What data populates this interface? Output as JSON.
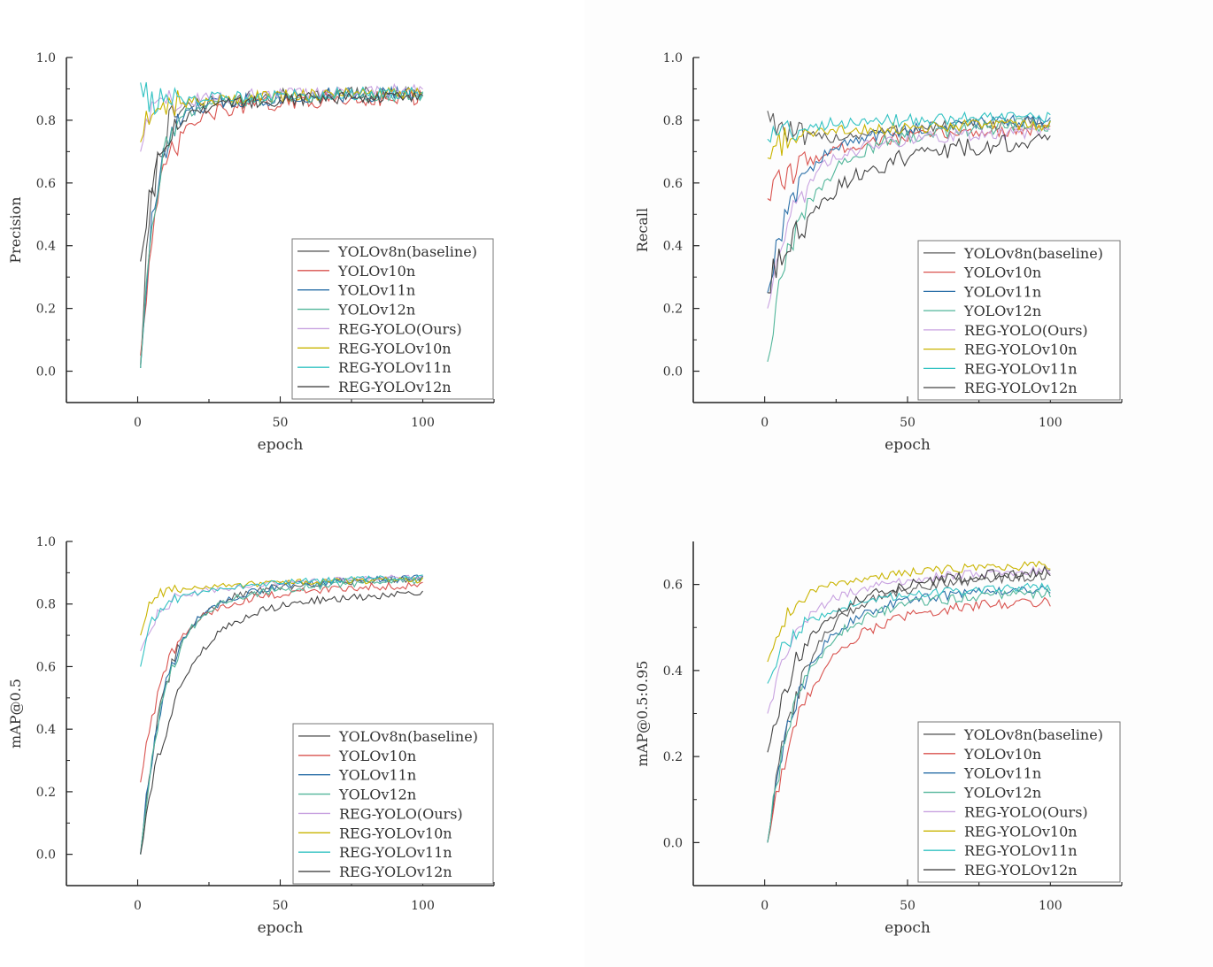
{
  "colors": {
    "series": [
      "#5c5c5c",
      "#d9534f",
      "#2a6fa8",
      "#52b69a",
      "#c8a2e0",
      "#c9b400",
      "#32c2c2",
      "#444444"
    ],
    "axis": "#222222",
    "text": "#333333",
    "legend_border": "#777777"
  },
  "legend_labels": [
    "YOLOv8n(baseline)",
    "YOLOv10n",
    "YOLOv11n",
    "YOLOv12n",
    "REG-YOLO(Ours)",
    "REG-YOLOv10n",
    "REG-YOLOv11n",
    "REG-YOLOv12n"
  ],
  "chart_data": [
    {
      "id": "precision",
      "type": "line",
      "title": "",
      "xlabel": "epoch",
      "ylabel": "Precision",
      "xlim": [
        -25,
        125
      ],
      "ylim": [
        -0.1,
        1.0
      ],
      "xticks": [
        0,
        50,
        100
      ],
      "yticks": [
        0.0,
        0.2,
        0.4,
        0.6,
        0.8,
        1.0
      ],
      "ytick_labels": [
        "0.0",
        "0.2",
        "0.4",
        "0.6",
        "0.8",
        "1.0"
      ],
      "legend_position": "lower-right",
      "epochs": [
        1,
        100
      ],
      "series": [
        {
          "name": "YOLOv8n(baseline)",
          "start": 0.02,
          "knee": 0.83,
          "final": 0.89,
          "tau": 4,
          "noise": 0.025
        },
        {
          "name": "YOLOv10n",
          "start": 0.05,
          "knee": 0.78,
          "final": 0.88,
          "tau": 6,
          "noise": 0.025
        },
        {
          "name": "YOLOv11n",
          "start": 0.01,
          "knee": 0.82,
          "final": 0.89,
          "tau": 5,
          "noise": 0.025
        },
        {
          "name": "YOLOv12n",
          "start": 0.01,
          "knee": 0.84,
          "final": 0.88,
          "tau": 5,
          "noise": 0.02
        },
        {
          "name": "REG-YOLO(Ours)",
          "start": 0.7,
          "knee": 0.84,
          "final": 0.9,
          "tau": 2,
          "noise": 0.02
        },
        {
          "name": "REG-YOLOv10n",
          "start": 0.73,
          "knee": 0.84,
          "final": 0.89,
          "tau": 2,
          "noise": 0.02
        },
        {
          "name": "REG-YOLOv11n",
          "start": 0.92,
          "knee": 0.85,
          "final": 0.89,
          "tau": 2,
          "noise": 0.02
        },
        {
          "name": "REG-YOLOv12n",
          "start": 0.35,
          "knee": 0.82,
          "final": 0.88,
          "tau": 6,
          "noise": 0.02
        }
      ]
    },
    {
      "id": "recall",
      "type": "line",
      "title": "",
      "xlabel": "epoch",
      "ylabel": "Recall",
      "xlim": [
        -25,
        125
      ],
      "ylim": [
        -0.1,
        1.0
      ],
      "xticks": [
        0,
        50,
        100
      ],
      "yticks": [
        0.0,
        0.2,
        0.4,
        0.6,
        0.8,
        1.0
      ],
      "ytick_labels": [
        "0.0",
        "0.2",
        "0.4",
        "0.6",
        "0.8",
        "1.0"
      ],
      "legend_position": "lower-right",
      "epochs": [
        1,
        100
      ],
      "series": [
        {
          "name": "YOLOv8n(baseline)",
          "start": 0.83,
          "knee": 0.68,
          "final": 0.8,
          "tau": 8,
          "noise": 0.02
        },
        {
          "name": "YOLOv10n",
          "start": 0.55,
          "knee": 0.65,
          "final": 0.78,
          "tau": 10,
          "noise": 0.02
        },
        {
          "name": "YOLOv11n",
          "start": 0.25,
          "knee": 0.65,
          "final": 0.81,
          "tau": 8,
          "noise": 0.02
        },
        {
          "name": "YOLOv12n",
          "start": 0.03,
          "knee": 0.6,
          "final": 0.8,
          "tau": 10,
          "noise": 0.025
        },
        {
          "name": "REG-YOLO(Ours)",
          "start": 0.2,
          "knee": 0.65,
          "final": 0.77,
          "tau": 9,
          "noise": 0.02
        },
        {
          "name": "REG-YOLOv10n",
          "start": 0.68,
          "knee": 0.74,
          "final": 0.79,
          "tau": 4,
          "noise": 0.02
        },
        {
          "name": "REG-YOLOv11n",
          "start": 0.74,
          "knee": 0.77,
          "final": 0.81,
          "tau": 4,
          "noise": 0.02
        },
        {
          "name": "REG-YOLOv12n",
          "start": 0.25,
          "knee": 0.5,
          "final": 0.75,
          "tau": 14,
          "noise": 0.03
        }
      ]
    },
    {
      "id": "map50",
      "type": "line",
      "title": "",
      "xlabel": "epoch",
      "ylabel": "mAP@0.5",
      "xlim": [
        -25,
        125
      ],
      "ylim": [
        -0.1,
        1.0
      ],
      "xticks": [
        0,
        50,
        100
      ],
      "yticks": [
        0.0,
        0.2,
        0.4,
        0.6,
        0.8,
        1.0
      ],
      "ytick_labels": [
        "0.0",
        "0.2",
        "0.4",
        "0.6",
        "0.8",
        "1.0"
      ],
      "legend_position": "lower-right",
      "epochs": [
        1,
        100
      ],
      "series": [
        {
          "name": "YOLOv8n(baseline)",
          "start": 0.0,
          "knee": 0.75,
          "final": 0.89,
          "tau": 8,
          "noise": 0.012
        },
        {
          "name": "YOLOv10n",
          "start": 0.23,
          "knee": 0.72,
          "final": 0.87,
          "tau": 8,
          "noise": 0.012
        },
        {
          "name": "YOLOv11n",
          "start": 0.0,
          "knee": 0.75,
          "final": 0.89,
          "tau": 8,
          "noise": 0.012
        },
        {
          "name": "YOLOv12n",
          "start": 0.0,
          "knee": 0.75,
          "final": 0.88,
          "tau": 8,
          "noise": 0.012
        },
        {
          "name": "REG-YOLO(Ours)",
          "start": 0.65,
          "knee": 0.8,
          "final": 0.89,
          "tau": 5,
          "noise": 0.01
        },
        {
          "name": "REG-YOLOv10n",
          "start": 0.7,
          "knee": 0.83,
          "final": 0.88,
          "tau": 3,
          "noise": 0.01
        },
        {
          "name": "REG-YOLOv11n",
          "start": 0.6,
          "knee": 0.8,
          "final": 0.89,
          "tau": 4,
          "noise": 0.01
        },
        {
          "name": "REG-YOLOv12n",
          "start": 0.0,
          "knee": 0.7,
          "final": 0.84,
          "tau": 12,
          "noise": 0.012
        }
      ]
    },
    {
      "id": "map5095",
      "type": "line",
      "title": "",
      "xlabel": "epoch",
      "ylabel": "mAP@0.5:0.95",
      "xlim": [
        -25,
        125
      ],
      "ylim": [
        -0.1,
        0.7
      ],
      "xticks": [
        0,
        50,
        100
      ],
      "yticks": [
        0.0,
        0.2,
        0.4,
        0.6
      ],
      "ytick_labels": [
        "0.0",
        "0.2",
        "0.4",
        "0.6"
      ],
      "legend_position": "lower-right",
      "epochs": [
        1,
        100
      ],
      "series": [
        {
          "name": "YOLOv8n(baseline)",
          "start": 0.0,
          "knee": 0.48,
          "final": 0.63,
          "tau": 10,
          "noise": 0.012
        },
        {
          "name": "YOLOv10n",
          "start": 0.0,
          "knee": 0.42,
          "final": 0.57,
          "tau": 12,
          "noise": 0.012
        },
        {
          "name": "YOLOv11n",
          "start": 0.0,
          "knee": 0.46,
          "final": 0.6,
          "tau": 10,
          "noise": 0.012
        },
        {
          "name": "YOLOv12n",
          "start": 0.0,
          "knee": 0.45,
          "final": 0.59,
          "tau": 10,
          "noise": 0.012
        },
        {
          "name": "REG-YOLO(Ours)",
          "start": 0.3,
          "knee": 0.52,
          "final": 0.64,
          "tau": 8,
          "noise": 0.01
        },
        {
          "name": "REG-YOLOv10n",
          "start": 0.42,
          "knee": 0.56,
          "final": 0.65,
          "tau": 6,
          "noise": 0.01
        },
        {
          "name": "REG-YOLOv11n",
          "start": 0.37,
          "knee": 0.5,
          "final": 0.6,
          "tau": 8,
          "noise": 0.01
        },
        {
          "name": "REG-YOLOv12n",
          "start": 0.21,
          "knee": 0.48,
          "final": 0.64,
          "tau": 10,
          "noise": 0.012
        }
      ]
    }
  ]
}
